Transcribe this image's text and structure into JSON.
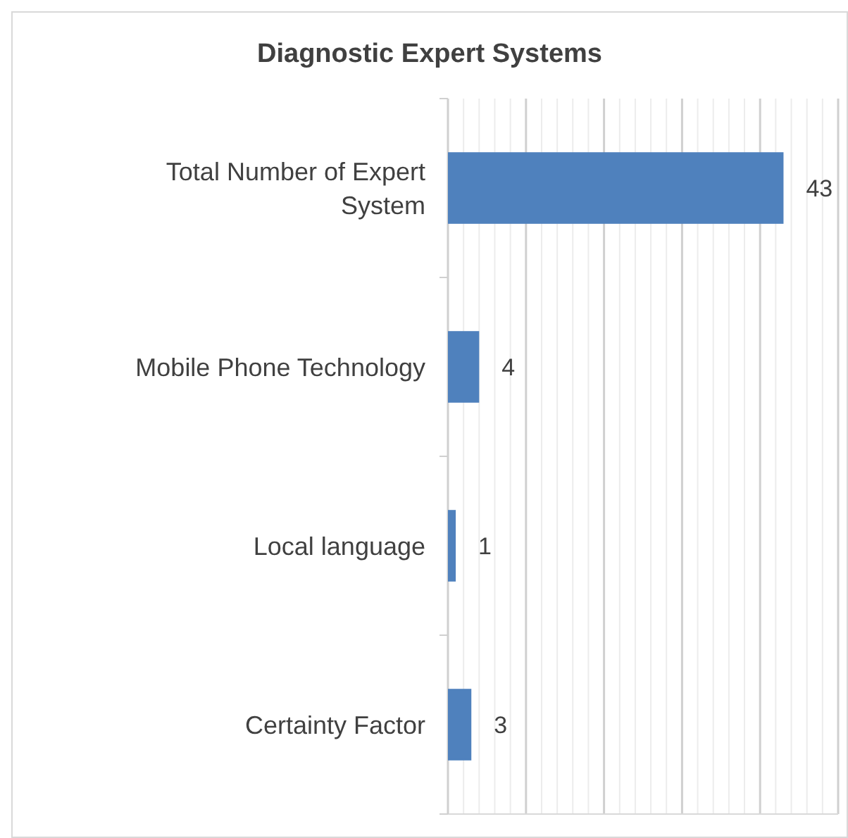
{
  "chart_data": {
    "type": "bar",
    "orientation": "horizontal",
    "title": "Diagnostic Expert Systems",
    "categories": [
      "Total Number of Expert System",
      "Mobile Phone Technology",
      "Local language",
      "Certainty Factor"
    ],
    "values": [
      43,
      4,
      1,
      3
    ],
    "color": "#4f81bd",
    "data_labels": true,
    "xlim": [
      0,
      50
    ],
    "xticks": [
      {
        "value": 0,
        "label": null
      },
      {
        "value": 2,
        "label": null
      },
      {
        "value": 4,
        "label": null
      },
      {
        "value": 6,
        "label": null
      },
      {
        "value": 8,
        "label": null
      },
      {
        "value": 10,
        "label": null
      },
      {
        "value": 12,
        "label": null
      },
      {
        "value": 14,
        "label": null
      },
      {
        "value": 16,
        "label": null
      },
      {
        "value": 18,
        "label": null
      },
      {
        "value": 20,
        "label": null
      },
      {
        "value": 22,
        "label": null
      },
      {
        "value": 24,
        "label": null
      },
      {
        "value": 26,
        "label": null
      },
      {
        "value": 28,
        "label": null
      },
      {
        "value": 30,
        "label": null
      },
      {
        "value": 32,
        "label": null
      },
      {
        "value": 34,
        "label": null
      },
      {
        "value": 36,
        "label": null
      },
      {
        "value": 38,
        "label": null
      },
      {
        "value": 40,
        "label": null
      },
      {
        "value": 42,
        "label": null
      },
      {
        "value": 44,
        "label": null
      },
      {
        "value": 46,
        "label": null
      },
      {
        "value": 48,
        "label": null
      },
      {
        "value": 50,
        "label": null
      }
    ],
    "grid": "x",
    "tick_labels": "y"
  }
}
